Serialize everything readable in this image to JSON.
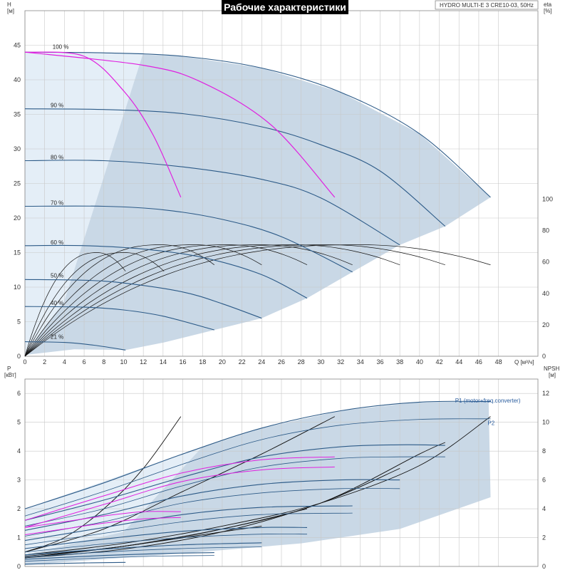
{
  "title": "Рабочие характеристики",
  "model": "HYDRO MULTI-E 3 CRE10-03, 50Hz",
  "colors": {
    "area": "#c9d8e6",
    "area_light": "#e4eef7",
    "curve": "#2c5a87",
    "system": "#e020e0",
    "eta": "#111111",
    "grid": "#c8c8c8"
  },
  "chart_data": [
    {
      "type": "line",
      "name": "top",
      "xlabel": "Q [м³/ч]",
      "ylabel": "H [м]",
      "y2label": "eta [%]",
      "xlim": [
        0,
        52
      ],
      "ylim": [
        0,
        50
      ],
      "y2lim": [
        0,
        220
      ],
      "x_ticks": [
        0,
        2,
        4,
        6,
        8,
        10,
        12,
        14,
        16,
        18,
        20,
        22,
        24,
        26,
        28,
        30,
        32,
        34,
        36,
        38,
        40,
        42,
        44,
        46,
        48
      ],
      "y_ticks": [
        0,
        5,
        10,
        15,
        20,
        25,
        30,
        35,
        40,
        45
      ],
      "y2_ticks": [
        0,
        20,
        40,
        60,
        80,
        100
      ],
      "speed_labels": [
        {
          "text": "100 %",
          "q": 2.8,
          "h": 44.3
        },
        {
          "text": "90 %",
          "q": 2.6,
          "h": 35.8
        },
        {
          "text": "80 %",
          "q": 2.6,
          "h": 28.3
        },
        {
          "text": "70 %",
          "q": 2.6,
          "h": 21.7
        },
        {
          "text": "60 %",
          "q": 2.6,
          "h": 16.0
        },
        {
          "text": "50 %",
          "q": 2.6,
          "h": 11.2
        },
        {
          "text": "40 %",
          "q": 2.6,
          "h": 7.2
        },
        {
          "text": "21 %",
          "q": 2.6,
          "h": 2.3
        }
      ],
      "series": [
        {
          "speed": "100 %",
          "x": [
            0,
            8,
            16,
            24,
            32,
            40,
            47.2
          ],
          "y": [
            44,
            43.9,
            43.4,
            41.7,
            38.2,
            32.2,
            23.0
          ]
        },
        {
          "speed": "90 %",
          "x": [
            0,
            8,
            16,
            24,
            30,
            36,
            42.6
          ],
          "y": [
            35.8,
            35.7,
            35.1,
            33.2,
            30.6,
            26.8,
            18.8
          ]
        },
        {
          "speed": "80 %",
          "x": [
            0,
            8,
            16,
            24,
            30,
            38
          ],
          "y": [
            28.3,
            28.3,
            27.4,
            25.6,
            22.9,
            16.1
          ]
        },
        {
          "speed": "70 %",
          "x": [
            0,
            8,
            14,
            20,
            26,
            33.2
          ],
          "y": [
            21.7,
            21.7,
            21.2,
            19.8,
            17.3,
            12.2
          ]
        },
        {
          "speed": "60 %",
          "x": [
            0,
            6,
            12,
            18,
            24,
            28.6
          ],
          "y": [
            16,
            16,
            15.5,
            14.3,
            11.8,
            8.4
          ]
        },
        {
          "speed": "50 %",
          "x": [
            0,
            6,
            10,
            16,
            20,
            24
          ],
          "y": [
            11.1,
            11.0,
            10.6,
            9.3,
            7.6,
            5.5
          ]
        },
        {
          "speed": "40 %",
          "x": [
            0,
            6,
            10,
            14,
            19.2
          ],
          "y": [
            7.2,
            7.1,
            6.7,
            5.8,
            3.8
          ]
        },
        {
          "speed": "21 %",
          "x": [
            0,
            4,
            7,
            10.2
          ],
          "y": [
            2.1,
            2.0,
            1.6,
            0.9
          ]
        }
      ],
      "system_curves": [
        {
          "x": [
            0,
            6,
            10,
            13,
            15.8
          ],
          "y": [
            44,
            43.4,
            38.4,
            32,
            23
          ]
        },
        {
          "x": [
            0,
            12,
            18,
            25,
            31.4
          ],
          "y": [
            44,
            42.1,
            39.6,
            33.4,
            23
          ]
        }
      ],
      "eta_end_q": [
        10.2,
        14.1,
        19.2,
        24.0,
        28.6,
        33.2,
        38.0,
        42.6,
        47.2
      ],
      "eta_peak_pct": 71
    },
    {
      "type": "line",
      "name": "bottom",
      "xlabel": "Q [м³/ч]",
      "ylabel": "P [кВт]",
      "y2label": "NPSH [м]",
      "xlim": [
        0,
        52
      ],
      "ylim": [
        0,
        6.5
      ],
      "y2lim": [
        0,
        13
      ],
      "y_ticks": [
        0,
        1,
        2,
        3,
        4,
        5,
        6
      ],
      "y2_ticks": [
        0,
        2,
        4,
        6,
        8,
        10,
        12
      ],
      "legend": [
        {
          "text": "P1 (motor+freq.converter)",
          "q": 43.6,
          "p": 5.68
        },
        {
          "text": "P2",
          "q": 46.9,
          "p": 4.9
        }
      ],
      "p1_series": [
        {
          "x": [
            0,
            8,
            16,
            24,
            32,
            40,
            47.2
          ],
          "y": [
            2.0,
            2.9,
            3.9,
            4.8,
            5.4,
            5.7,
            5.72
          ]
        },
        {
          "x": [
            0,
            8,
            16,
            24,
            32,
            38,
            42.6
          ],
          "y": [
            1.6,
            2.3,
            3.1,
            3.8,
            4.15,
            4.22,
            4.2
          ]
        },
        {
          "x": [
            0,
            8,
            16,
            24,
            32,
            38
          ],
          "y": [
            1.25,
            1.8,
            2.45,
            2.85,
            3.0,
            3.0
          ]
        },
        {
          "x": [
            0,
            8,
            16,
            24,
            33.2
          ],
          "y": [
            0.9,
            1.35,
            1.8,
            2.05,
            2.1
          ]
        },
        {
          "x": [
            0,
            8,
            16,
            24,
            28.6
          ],
          "y": [
            0.62,
            0.95,
            1.22,
            1.35,
            1.35
          ]
        },
        {
          "x": [
            0,
            8,
            16,
            24
          ],
          "y": [
            0.4,
            0.6,
            0.75,
            0.82
          ]
        },
        {
          "x": [
            0,
            8,
            14,
            19.2
          ],
          "y": [
            0.25,
            0.38,
            0.45,
            0.48
          ]
        },
        {
          "x": [
            0,
            6,
            10.2
          ],
          "y": [
            0.08,
            0.12,
            0.14
          ]
        }
      ],
      "p2_series": [
        {
          "x": [
            0,
            8,
            16,
            24,
            32,
            40,
            47.2
          ],
          "y": [
            1.75,
            2.6,
            3.55,
            4.4,
            4.9,
            5.1,
            5.12
          ]
        },
        {
          "x": [
            0,
            8,
            16,
            24,
            32,
            38,
            42.6
          ],
          "y": [
            1.4,
            2.0,
            2.8,
            3.45,
            3.75,
            3.8,
            3.8
          ]
        },
        {
          "x": [
            0,
            8,
            16,
            24,
            32,
            38
          ],
          "y": [
            1.05,
            1.55,
            2.2,
            2.55,
            2.7,
            2.7
          ]
        },
        {
          "x": [
            0,
            8,
            16,
            24,
            33.2
          ],
          "y": [
            0.75,
            1.15,
            1.55,
            1.8,
            1.85
          ]
        },
        {
          "x": [
            0,
            8,
            16,
            24,
            28.6
          ],
          "y": [
            0.5,
            0.78,
            1.0,
            1.12,
            1.12
          ]
        },
        {
          "x": [
            0,
            8,
            16,
            24
          ],
          "y": [
            0.32,
            0.5,
            0.62,
            0.68
          ]
        },
        {
          "x": [
            0,
            8,
            14,
            19.2
          ],
          "y": [
            0.18,
            0.3,
            0.36,
            0.38
          ]
        }
      ],
      "system_power": [
        {
          "x": [
            0,
            4,
            8,
            12,
            15.8
          ],
          "y": [
            1.35,
            1.55,
            1.75,
            1.9,
            1.9
          ]
        },
        {
          "x": [
            0,
            4,
            8,
            12,
            15.8
          ],
          "y": [
            1.1,
            1.3,
            1.5,
            1.65,
            1.7
          ]
        },
        {
          "x": [
            0,
            8,
            16,
            24,
            31.4
          ],
          "y": [
            1.6,
            2.45,
            3.25,
            3.7,
            3.8
          ]
        },
        {
          "x": [
            0,
            8,
            16,
            24,
            31.4
          ],
          "y": [
            1.35,
            2.15,
            2.95,
            3.35,
            3.45
          ]
        }
      ],
      "npsh_curves": [
        {
          "x": [
            0,
            4,
            8,
            12,
            15.8
          ],
          "y": [
            0.5,
            1.0,
            2.0,
            3.4,
            5.2
          ]
        },
        {
          "x": [
            0,
            8,
            16,
            24,
            31.4
          ],
          "y": [
            0.5,
            1.3,
            2.6,
            3.9,
            5.2
          ]
        },
        {
          "x": [
            0,
            10,
            20,
            30,
            40,
            47.2
          ],
          "y": [
            0.4,
            0.8,
            1.4,
            2.2,
            3.5,
            5.2
          ]
        },
        {
          "x": [
            0,
            10,
            20,
            30,
            40,
            42.6
          ],
          "y": [
            0.35,
            0.7,
            1.3,
            2.2,
            3.9,
            4.3
          ]
        },
        {
          "x": [
            0,
            10,
            20,
            30,
            38
          ],
          "y": [
            0.3,
            0.6,
            1.2,
            2.2,
            3.4
          ]
        },
        {
          "x": [
            0,
            10,
            20,
            28.6
          ],
          "y": [
            0.3,
            0.7,
            1.3,
            2.0
          ]
        },
        {
          "x": [
            0,
            10,
            20,
            24
          ],
          "y": [
            0.3,
            0.7,
            1.2,
            1.4
          ]
        }
      ]
    }
  ]
}
